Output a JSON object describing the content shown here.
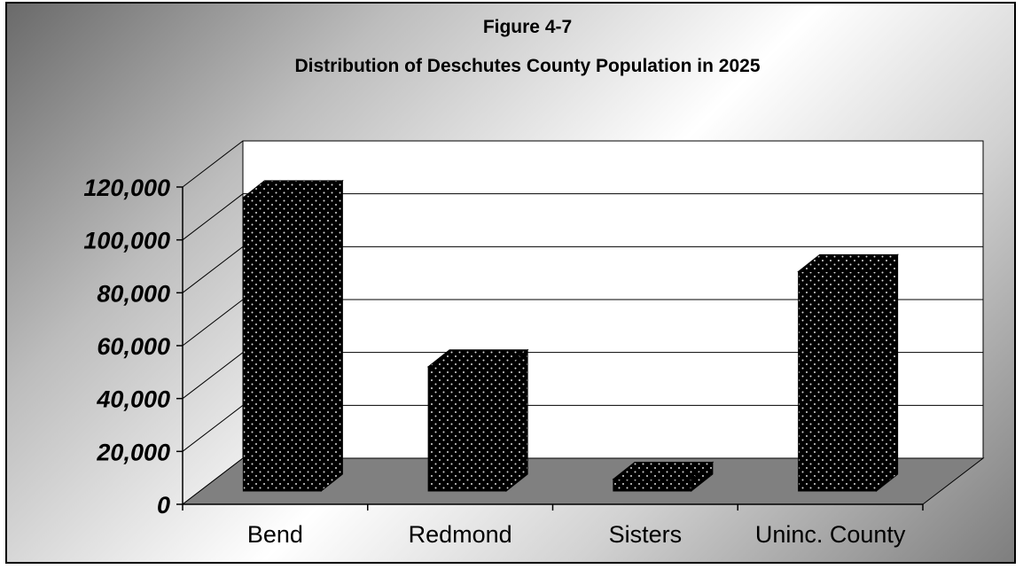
{
  "chart_data": {
    "type": "bar",
    "title": "Figure 4-7",
    "subtitle": "Distribution of Deschutes County Population in 2025",
    "categories": [
      "Bend",
      "Redmond",
      "Sisters",
      "Uninc. County"
    ],
    "values": [
      111000,
      47000,
      4500,
      83000
    ],
    "ylim": [
      0,
      120000
    ],
    "yticks": [
      "0",
      "20,000",
      "40,000",
      "60,000",
      "80,000",
      "100,000",
      "120,000"
    ],
    "ytick_values": [
      0,
      20000,
      40000,
      60000,
      80000,
      100000,
      120000
    ],
    "xlabel": "",
    "ylabel": "",
    "grid": true,
    "legend": "none",
    "style": "3d-column",
    "colors": {
      "bar": "#000000",
      "bar_dots": "#d9d9d9",
      "floor": "#808080",
      "back_wall": "#ffffff"
    }
  }
}
